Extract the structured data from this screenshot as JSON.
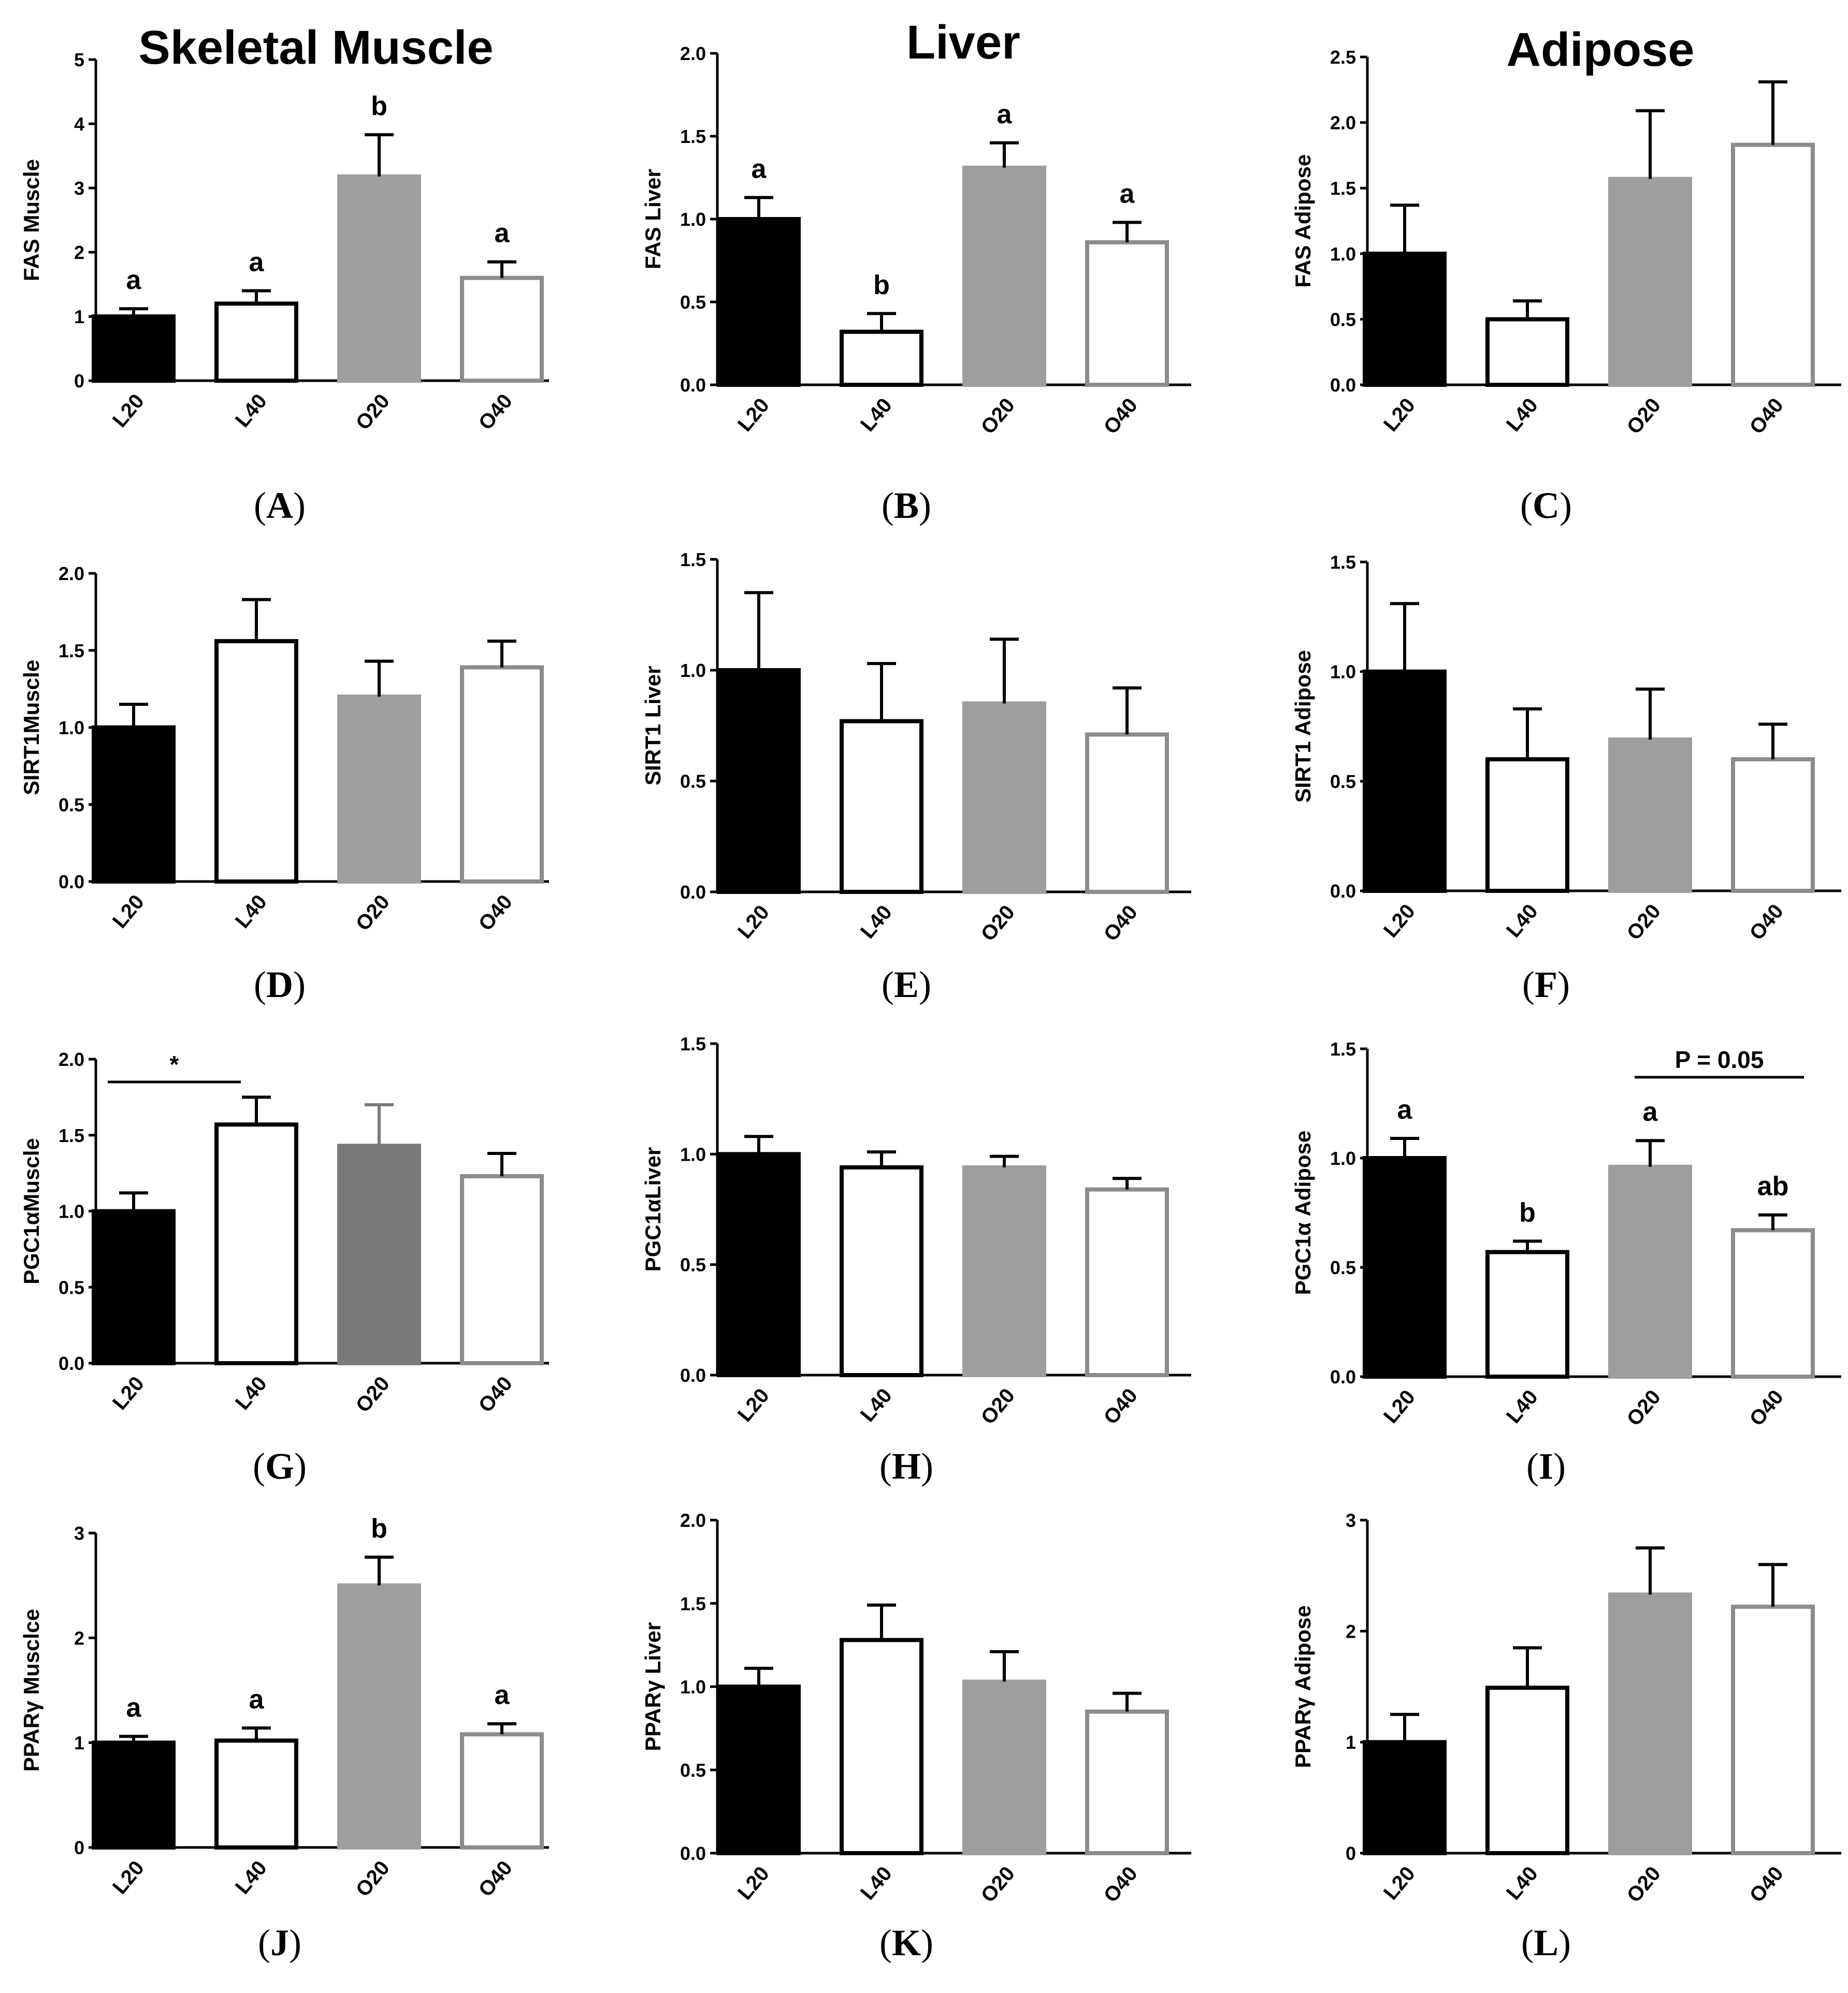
{
  "figure": {
    "column_titles": [
      "Skeletal Muscle",
      "Liver",
      "Adipose"
    ],
    "colors": {
      "L20_fill": "#000000",
      "L40_fill": "#ffffff",
      "O20_fill": "#9e9e9e",
      "O20_fill_dark": "#7a7a7a",
      "O40_fill": "#ffffff",
      "O40_stroke": "#8c8c8c",
      "axis": "#000000"
    }
  },
  "chart_data": [
    {
      "panel": "A",
      "type": "bar",
      "ylabel": "FAS Muscle",
      "categories": [
        "L20",
        "L40",
        "O20",
        "O40"
      ],
      "values": [
        1.0,
        1.2,
        3.18,
        1.6
      ],
      "errors": [
        0.12,
        0.2,
        0.65,
        0.25
      ],
      "ylim": [
        0,
        5
      ],
      "yticks": [
        0,
        1,
        2,
        3,
        4,
        5
      ],
      "ytick_labels": [
        "0",
        "1",
        "2",
        "3",
        "4",
        "5"
      ],
      "sig": [
        "a",
        "a",
        "b",
        "a"
      ]
    },
    {
      "panel": "B",
      "type": "bar",
      "ylabel": "FAS Liver",
      "categories": [
        "L20",
        "L40",
        "O20",
        "O40"
      ],
      "values": [
        1.0,
        0.32,
        1.31,
        0.86
      ],
      "errors": [
        0.13,
        0.11,
        0.15,
        0.12
      ],
      "ylim": [
        0,
        2.0
      ],
      "yticks": [
        0,
        0.5,
        1,
        1.5,
        2
      ],
      "ytick_labels": [
        "0.0",
        "0.5",
        "1.0",
        "1.5",
        "2.0"
      ],
      "sig": [
        "a",
        "b",
        "a",
        "a"
      ]
    },
    {
      "panel": "C",
      "type": "bar",
      "ylabel": "FAS  Adipose",
      "categories": [
        "L20",
        "L40",
        "O20",
        "O40"
      ],
      "values": [
        1.0,
        0.5,
        1.57,
        1.83
      ],
      "errors": [
        0.37,
        0.14,
        0.52,
        0.48
      ],
      "ylim": [
        0,
        2.5
      ],
      "yticks": [
        0,
        0.5,
        1,
        1.5,
        2,
        2.5
      ],
      "ytick_labels": [
        "0.0",
        "0.5",
        "1.0",
        "1.5",
        "2.0",
        "2.5"
      ]
    },
    {
      "panel": "D",
      "type": "bar",
      "ylabel": "SIRT1Muscle",
      "categories": [
        "L20",
        "L40",
        "O20",
        "O40"
      ],
      "values": [
        1.0,
        1.56,
        1.2,
        1.39
      ],
      "errors": [
        0.15,
        0.27,
        0.23,
        0.17
      ],
      "ylim": [
        0,
        2.0
      ],
      "yticks": [
        0,
        0.5,
        1,
        1.5,
        2
      ],
      "ytick_labels": [
        "0.0",
        "0.5",
        "1.0",
        "1.5",
        "2.0"
      ]
    },
    {
      "panel": "E",
      "type": "bar",
      "ylabel": "SIRT1 Liver",
      "categories": [
        "L20",
        "L40",
        "O20",
        "O40"
      ],
      "values": [
        1.0,
        0.77,
        0.85,
        0.71
      ],
      "errors": [
        0.35,
        0.26,
        0.29,
        0.21
      ],
      "ylim": [
        0,
        1.5
      ],
      "yticks": [
        0,
        0.5,
        1,
        1.5
      ],
      "ytick_labels": [
        "0.0",
        "0.5",
        "1.0",
        "1.5"
      ]
    },
    {
      "panel": "F",
      "type": "bar",
      "ylabel": "SIRT1 Adipose",
      "categories": [
        "L20",
        "L40",
        "O20",
        "O40"
      ],
      "values": [
        1.0,
        0.6,
        0.69,
        0.6
      ],
      "errors": [
        0.31,
        0.23,
        0.23,
        0.16
      ],
      "ylim": [
        0,
        1.5
      ],
      "yticks": [
        0,
        0.5,
        1,
        1.5
      ],
      "ytick_labels": [
        "0.0",
        "0.5",
        "1.0",
        "1.5"
      ]
    },
    {
      "panel": "G",
      "type": "bar",
      "ylabel": "PGC1αMuscle",
      "categories": [
        "L20",
        "L40",
        "O20",
        "O40"
      ],
      "values": [
        1.0,
        1.57,
        1.43,
        1.23
      ],
      "errors": [
        0.12,
        0.18,
        0.27,
        0.15
      ],
      "ylim": [
        0,
        2.0
      ],
      "yticks": [
        0,
        0.5,
        1,
        1.5,
        2
      ],
      "ytick_labels": [
        "0.0",
        "0.5",
        "1.0",
        "1.5",
        "2.0"
      ],
      "bracket": {
        "from": 0,
        "to": 1,
        "label": "*"
      },
      "dark_o20": true
    },
    {
      "panel": "H",
      "type": "bar",
      "ylabel": "PGC1αLiver",
      "categories": [
        "L20",
        "L40",
        "O20",
        "O40"
      ],
      "values": [
        1.0,
        0.94,
        0.94,
        0.84
      ],
      "errors": [
        0.08,
        0.07,
        0.05,
        0.05
      ],
      "ylim": [
        0,
        1.5
      ],
      "yticks": [
        0,
        0.5,
        1,
        1.5
      ],
      "ytick_labels": [
        "0.0",
        "0.5",
        "1.0",
        "1.5"
      ]
    },
    {
      "panel": "I",
      "type": "bar",
      "ylabel": "PGC1α Adipose",
      "categories": [
        "L20",
        "L40",
        "O20",
        "O40"
      ],
      "values": [
        1.0,
        0.57,
        0.96,
        0.67
      ],
      "errors": [
        0.09,
        0.05,
        0.12,
        0.07
      ],
      "ylim": [
        0,
        1.5
      ],
      "yticks": [
        0,
        0.5,
        1,
        1.5
      ],
      "ytick_labels": [
        "0.0",
        "0.5",
        "1.0",
        "1.5"
      ],
      "sig": [
        "a",
        "b",
        "a",
        "ab"
      ],
      "bracket": {
        "from": 2,
        "to": 3,
        "label": "P = 0.05"
      }
    },
    {
      "panel": "J",
      "type": "bar",
      "ylabel": "PPARγ Musclce",
      "categories": [
        "L20",
        "L40",
        "O20",
        "O40"
      ],
      "values": [
        1.0,
        1.02,
        2.5,
        1.08
      ],
      "errors": [
        0.06,
        0.12,
        0.27,
        0.1
      ],
      "ylim": [
        0,
        3
      ],
      "yticks": [
        0,
        1,
        2,
        3
      ],
      "ytick_labels": [
        "0",
        "1",
        "2",
        "3"
      ],
      "sig": [
        "a",
        "a",
        "b",
        "a"
      ]
    },
    {
      "panel": "K",
      "type": "bar",
      "ylabel": "PPARγ Liver",
      "categories": [
        "L20",
        "L40",
        "O20",
        "O40"
      ],
      "values": [
        1.0,
        1.28,
        1.03,
        0.85
      ],
      "errors": [
        0.11,
        0.21,
        0.18,
        0.11
      ],
      "ylim": [
        0,
        2.0
      ],
      "yticks": [
        0,
        0.5,
        1,
        1.5,
        2
      ],
      "ytick_labels": [
        "0.0",
        "0.5",
        "1.0",
        "1.5",
        "2.0"
      ]
    },
    {
      "panel": "L",
      "type": "bar",
      "ylabel": "PPARγ Adipose",
      "categories": [
        "L20",
        "L40",
        "O20",
        "O40"
      ],
      "values": [
        1.0,
        1.49,
        2.33,
        2.22
      ],
      "errors": [
        0.25,
        0.36,
        0.42,
        0.38
      ],
      "ylim": [
        0,
        3
      ],
      "yticks": [
        0,
        1,
        2,
        3
      ],
      "ytick_labels": [
        "0",
        "1",
        "2",
        "3"
      ]
    }
  ]
}
